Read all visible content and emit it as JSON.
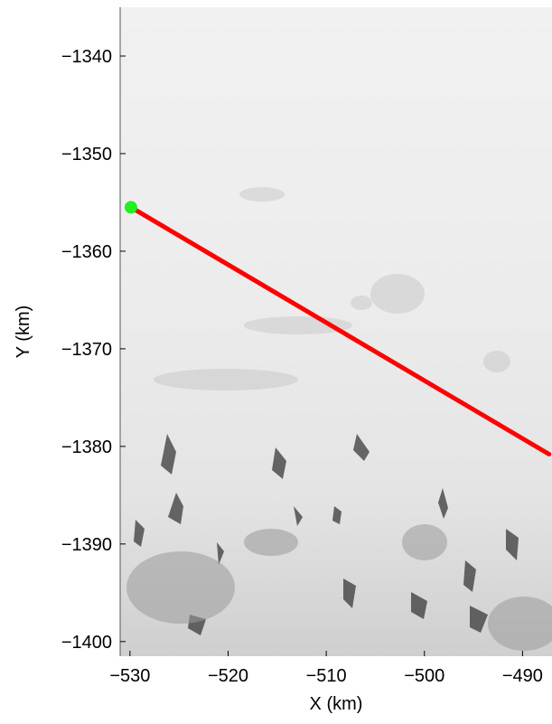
{
  "chart_data": {
    "type": "line",
    "title": "",
    "xlabel": "X (km)",
    "ylabel": "Y (km)",
    "xlim": [
      -531,
      -487
    ],
    "ylim": [
      -1401.5,
      -1335
    ],
    "x_ticks": [
      -530,
      -520,
      -510,
      -500,
      -490
    ],
    "x_tick_labels": [
      "−530",
      "−520",
      "−510",
      "−500",
      "−490"
    ],
    "y_ticks": [
      -1340,
      -1350,
      -1360,
      -1370,
      -1380,
      -1390,
      -1400
    ],
    "y_tick_labels": [
      "−1340",
      "−1350",
      "−1360",
      "−1370",
      "−1380",
      "−1390",
      "−1400"
    ],
    "grid": false,
    "background": "grayscale satellite imagery of snow-covered terrain",
    "series": [
      {
        "role": "flight-line",
        "color": "#ff0000",
        "x": [
          -529.9,
          -487.3
        ],
        "y": [
          -1355.5,
          -1380.8
        ]
      }
    ],
    "markers": [
      {
        "role": "start-point",
        "color": "#22ee22",
        "x": -529.9,
        "y": -1355.5
      }
    ]
  }
}
